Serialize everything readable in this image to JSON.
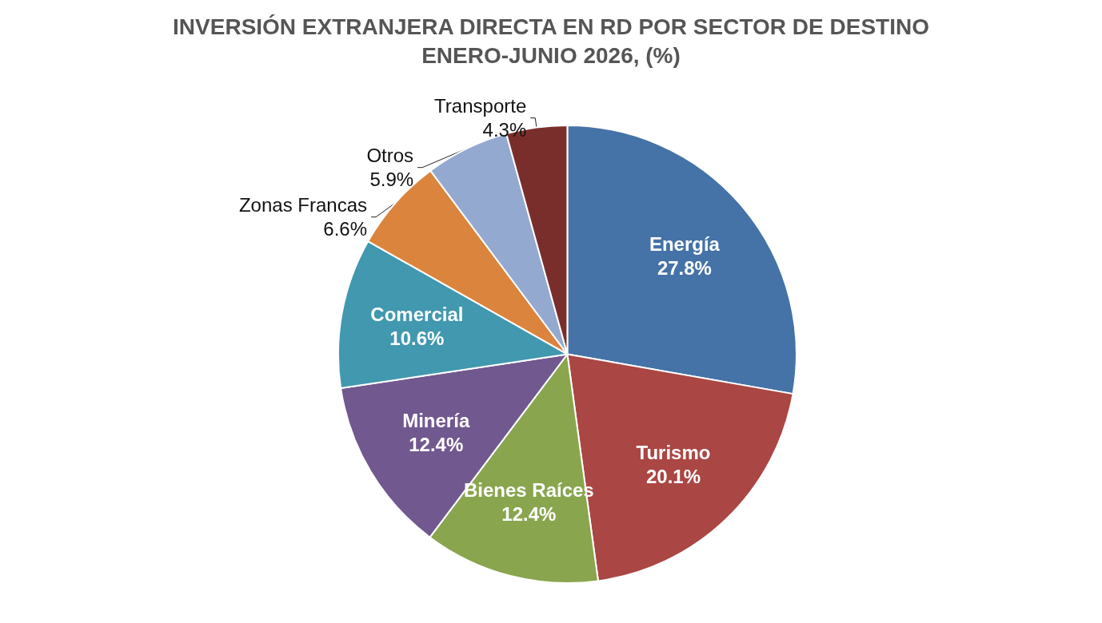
{
  "chart_data": {
    "type": "pie",
    "title": "INVERSIÓN EXTRANJERA DIRECTA EN RD POR SECTOR DE DESTINO",
    "subtitle": "ENERO-JUNIO 2026, (%)",
    "categories": [
      "Energía",
      "Turismo",
      "Bienes Raíces",
      "Minería",
      "Comercial",
      "Zonas Francas",
      "Otros",
      "Transporte"
    ],
    "values": [
      27.8,
      20.1,
      12.4,
      12.4,
      10.6,
      6.6,
      5.9,
      4.3
    ],
    "colors": [
      "#4572a7",
      "#aa4643",
      "#89a54e",
      "#71588f",
      "#4198af",
      "#db843d",
      "#93a9cf",
      "#7a2e2b"
    ],
    "value_labels": [
      "27.8%",
      "20.1%",
      "12.4%",
      "12.4%",
      "10.6%",
      "6.6%",
      "5.9%",
      "4.3%"
    ],
    "legend": false
  }
}
